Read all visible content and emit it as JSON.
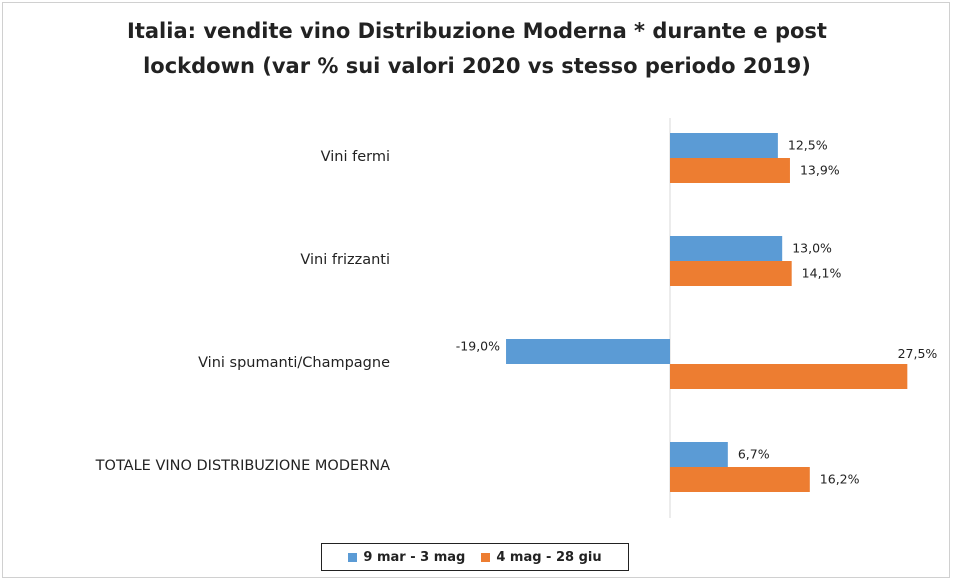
{
  "chart_data": {
    "type": "bar",
    "orientation": "horizontal",
    "title_lines": [
      "Italia: vendite vino Distribuzione Moderna * durante e post",
      "lockdown (var % sui valori 2020 vs stesso periodo 2019)"
    ],
    "categories": [
      "Vini fermi",
      "Vini frizzanti",
      "Vini spumanti/Champagne",
      "TOTALE VINO DISTRIBUZIONE MODERNA"
    ],
    "series": [
      {
        "name": "9 mar - 3 mag",
        "color": "#5b9bd5",
        "values": [
          12.5,
          13.0,
          -19.0,
          6.7
        ],
        "labels": [
          "12,5%",
          "13,0%",
          "-19,0%",
          "6,7%"
        ]
      },
      {
        "name": "4 mag - 28 giu",
        "color": "#ed7d31",
        "values": [
          13.9,
          14.1,
          27.5,
          16.2
        ],
        "labels": [
          "13,9%",
          "14,1%",
          "27,5%",
          "16,2%"
        ]
      }
    ],
    "xlim": [
      -19,
      27.5
    ],
    "grid": false,
    "legend_position": "bottom"
  }
}
